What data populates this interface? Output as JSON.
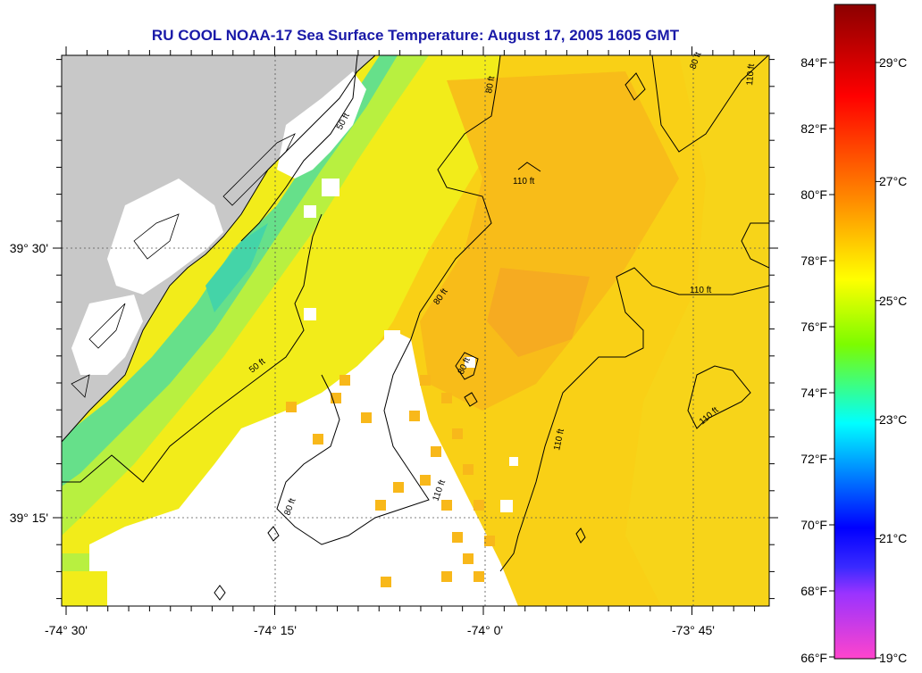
{
  "title": "RU COOL  NOAA-17  Sea Surface Temperature:  August 17, 2005 1605 GMT",
  "axes": {
    "lon_labels": [
      "-74° 30'",
      "-74° 15'",
      "-74° 0'",
      "-73° 45'"
    ],
    "lat_labels": [
      "39° 30'",
      "39° 15'"
    ]
  },
  "colorbar": {
    "f_labels": [
      "84°F",
      "82°F",
      "80°F",
      "78°F",
      "76°F",
      "74°F",
      "72°F",
      "70°F",
      "68°F",
      "66°F"
    ],
    "c_labels": [
      "29°C",
      "27°C",
      "25°C",
      "23°C",
      "21°C",
      "19°C"
    ],
    "colors": {
      "top": "#8b0000",
      "red": "#ff0000",
      "orange": "#ff8c00",
      "yellow": "#ffff00",
      "green": "#7cfc00",
      "cyan": "#00ffff",
      "blue": "#0000ff",
      "bottom": "#ff44cc"
    }
  },
  "map": {
    "land_color": "#c8c8c8",
    "water_palette": {
      "cool_green": "#66e08a",
      "green_yellow": "#b8f040",
      "yellow": "#f2ec1a",
      "warm_yellow": "#f9d016",
      "orange_yellow": "#f8b81a",
      "orange": "#f5a623"
    },
    "contour_labels": [
      "50 ft",
      "50 ft",
      "80 ft",
      "80 ft",
      "80 ft",
      "80 ft",
      "110 ft",
      "110 ft",
      "110 ft",
      "110 ft",
      "110 ft",
      "110 ft"
    ]
  }
}
